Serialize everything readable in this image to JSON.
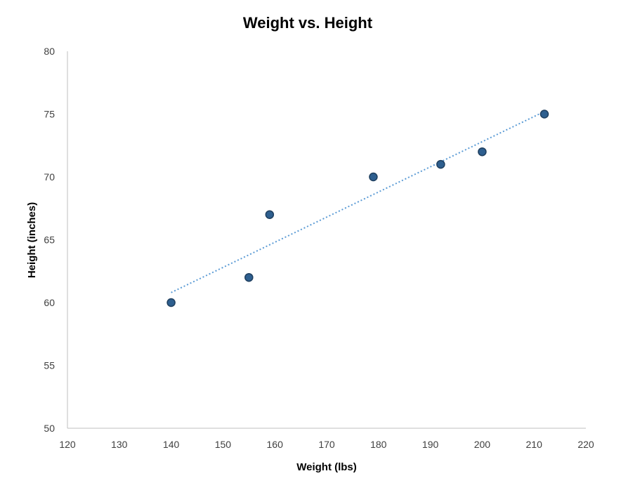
{
  "chart_data": {
    "type": "scatter",
    "title": "Weight vs. Height",
    "xlabel": "Weight (lbs)",
    "ylabel": "Height (inches)",
    "xlim": [
      120,
      220
    ],
    "ylim": [
      50,
      80
    ],
    "xticks": [
      120,
      130,
      140,
      150,
      160,
      170,
      180,
      190,
      200,
      210,
      220
    ],
    "yticks": [
      50,
      55,
      60,
      65,
      70,
      75,
      80
    ],
    "grid": false,
    "series": [
      {
        "points": [
          {
            "x": 140,
            "y": 60
          },
          {
            "x": 155,
            "y": 62
          },
          {
            "x": 159,
            "y": 67
          },
          {
            "x": 179,
            "y": 70
          },
          {
            "x": 192,
            "y": 71
          },
          {
            "x": 200,
            "y": 72
          },
          {
            "x": 212,
            "y": 75
          }
        ],
        "color": "#2e5f8f",
        "trendline": {
          "type": "linear",
          "color": "#5b9bd5",
          "style": "dotted"
        }
      }
    ]
  }
}
